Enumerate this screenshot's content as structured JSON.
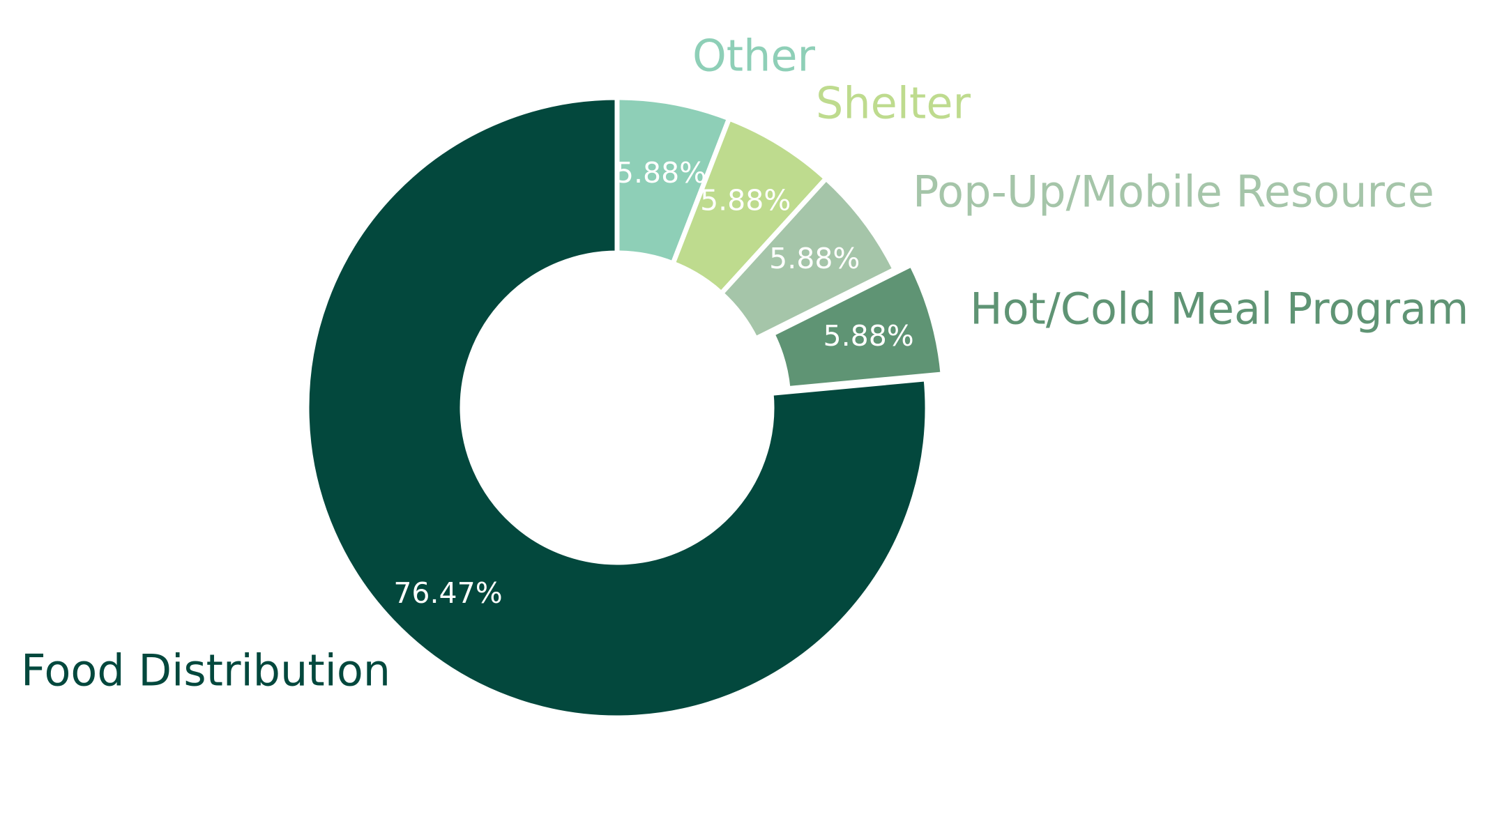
{
  "chart_data": {
    "type": "pie",
    "variant": "donut",
    "title": "",
    "start_angle_deg": 0,
    "direction": "clockwise",
    "slices": [
      {
        "label": "Other",
        "value": 5.88,
        "display": "5.88%",
        "color": "#8ecfb7",
        "exploded": false
      },
      {
        "label": "Shelter",
        "value": 5.88,
        "display": "5.88%",
        "color": "#bedb8e",
        "exploded": false
      },
      {
        "label": "Pop-Up/Mobile Resource",
        "value": 5.88,
        "display": "5.88%",
        "color": "#a5c5a9",
        "exploded": false
      },
      {
        "label": "Hot/Cold Meal Program",
        "value": 5.88,
        "display": "5.88%",
        "color": "#5f9474",
        "exploded": true
      },
      {
        "label": "Food Distribution",
        "value": 76.47,
        "display": "76.47%",
        "color": "#03483d",
        "exploded": false
      }
    ],
    "label_color": "#ffffff",
    "legend": "none"
  }
}
